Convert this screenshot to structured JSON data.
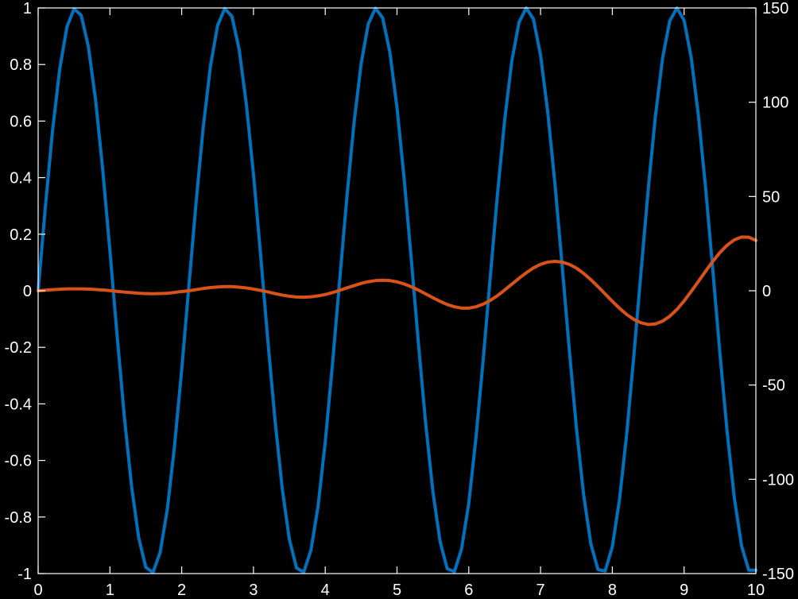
{
  "chart_data": {
    "type": "line",
    "title": "",
    "xlabel": "",
    "ylabel_left": "",
    "ylabel_right": "",
    "xlim": [
      0,
      10
    ],
    "ylim_left": [
      -1,
      1
    ],
    "ylim_right": [
      -150,
      150
    ],
    "grid": false,
    "background": "#000000",
    "axis_color": "#ffffff",
    "x_ticks": [
      "0",
      "1",
      "2",
      "3",
      "4",
      "5",
      "6",
      "7",
      "8",
      "9",
      "10"
    ],
    "y_left_ticks": [
      "-1",
      "-0.8",
      "-0.6",
      "-0.4",
      "-0.2",
      "0",
      "0.2",
      "0.4",
      "0.6",
      "0.8",
      "1"
    ],
    "y_right_ticks": [
      "-150",
      "-100",
      "-50",
      "0",
      "50",
      "100",
      "150"
    ],
    "series": [
      {
        "axis": "left",
        "color": "#0072BD",
        "x": [
          0,
          0.1,
          0.2,
          0.3,
          0.4,
          0.5,
          0.6,
          0.7,
          0.8,
          0.9,
          1,
          1.1,
          1.2,
          1.3,
          1.4,
          1.5,
          1.6,
          1.7,
          1.8,
          1.9,
          2,
          2.1,
          2.2,
          2.3,
          2.4,
          2.5,
          2.6,
          2.7,
          2.8,
          2.9,
          3,
          3.1,
          3.2,
          3.3,
          3.4,
          3.5,
          3.6,
          3.7,
          3.8,
          3.9,
          4,
          4.1,
          4.2,
          4.3,
          4.4,
          4.5,
          4.6,
          4.7,
          4.8,
          4.9,
          5,
          5.1,
          5.2,
          5.3,
          5.4,
          5.5,
          5.6,
          5.7,
          5.8,
          5.9,
          6,
          6.1,
          6.2,
          6.3,
          6.4,
          6.5,
          6.6,
          6.7,
          6.8,
          6.9,
          7,
          7.1,
          7.2,
          7.3,
          7.4,
          7.5,
          7.6,
          7.7,
          7.8,
          7.9,
          8,
          8.1,
          8.2,
          8.3,
          8.4,
          8.5,
          8.6,
          8.7,
          8.8,
          8.9,
          9,
          9.1,
          9.2,
          9.3,
          9.4,
          9.5,
          9.6,
          9.7,
          9.8,
          9.9,
          10
        ],
        "y": [
          0,
          0.295,
          0.565,
          0.783,
          0.932,
          0.997,
          0.974,
          0.863,
          0.675,
          0.427,
          0.141,
          -0.158,
          -0.443,
          -0.688,
          -0.872,
          -0.978,
          -0.996,
          -0.925,
          -0.772,
          -0.549,
          -0.279,
          0.017,
          0.311,
          0.578,
          0.793,
          0.938,
          0.998,
          0.97,
          0.854,
          0.661,
          0.412,
          0.125,
          -0.175,
          -0.457,
          -0.698,
          -0.879,
          -0.98,
          -0.995,
          -0.918,
          -0.762,
          -0.535,
          -0.262,
          0.034,
          0.327,
          0.591,
          0.803,
          0.944,
          0.999,
          0.965,
          0.844,
          0.647,
          0.395,
          0.108,
          -0.191,
          -0.471,
          -0.71,
          -0.887,
          -0.983,
          -0.993,
          -0.912,
          -0.751,
          -0.52,
          -0.246,
          0.05,
          0.342,
          0.604,
          0.813,
          0.949,
          1.0,
          0.961,
          0.833,
          0.632,
          0.379,
          0.091,
          -0.208,
          -0.486,
          -0.721,
          -0.894,
          -0.986,
          -0.991,
          -0.905,
          -0.738,
          -0.507,
          -0.229,
          0.067,
          0.358,
          0.617,
          0.822,
          0.954,
          1.0,
          0.956,
          0.823,
          0.618,
          0.363,
          0.074,
          -0.224,
          -0.5,
          -0.733,
          -0.901,
          -0.988,
          -0.988
        ]
      },
      {
        "axis": "right",
        "color": "#D95319",
        "x": [
          0,
          0.1,
          0.2,
          0.3,
          0.4,
          0.5,
          0.6,
          0.7,
          0.8,
          0.9,
          1,
          1.1,
          1.2,
          1.3,
          1.4,
          1.5,
          1.6,
          1.7,
          1.8,
          1.9,
          2,
          2.1,
          2.2,
          2.3,
          2.4,
          2.5,
          2.6,
          2.7,
          2.8,
          2.9,
          3,
          3.1,
          3.2,
          3.3,
          3.4,
          3.5,
          3.6,
          3.7,
          3.8,
          3.9,
          4,
          4.1,
          4.2,
          4.3,
          4.4,
          4.5,
          4.6,
          4.7,
          4.8,
          4.9,
          5,
          5.1,
          5.2,
          5.3,
          5.4,
          5.5,
          5.6,
          5.7,
          5.8,
          5.9,
          6,
          6.1,
          6.2,
          6.3,
          6.4,
          6.5,
          6.6,
          6.7,
          6.8,
          6.9,
          7,
          7.1,
          7.2,
          7.3,
          7.4,
          7.5,
          7.6,
          7.7,
          7.8,
          7.9,
          8,
          8.1,
          8.2,
          8.3,
          8.4,
          8.5,
          8.6,
          8.7,
          8.8,
          8.9,
          9,
          9.1,
          9.2,
          9.3,
          9.4,
          9.5,
          9.6,
          9.7,
          9.8,
          9.9,
          10
        ],
        "y": [
          0,
          0.3,
          0.6,
          0.8,
          1.0,
          1.0,
          1.0,
          0.9,
          0.7,
          0.4,
          0.1,
          -0.3,
          -0.7,
          -1.0,
          -1.3,
          -1.5,
          -1.6,
          -1.5,
          -1.3,
          -0.9,
          -0.4,
          0.0,
          0.6,
          1.2,
          1.7,
          2.0,
          2.2,
          2.2,
          1.9,
          1.5,
          0.9,
          0.2,
          -0.6,
          -1.5,
          -2.3,
          -2.9,
          -3.3,
          -3.4,
          -3.2,
          -2.7,
          -2.0,
          -1.0,
          0.2,
          1.5,
          2.7,
          3.9,
          4.8,
          5.4,
          5.6,
          5.4,
          4.7,
          3.6,
          2.1,
          0.3,
          -1.7,
          -3.7,
          -5.6,
          -7.3,
          -8.5,
          -9.2,
          -9.2,
          -8.5,
          -7.1,
          -5.1,
          -2.6,
          0.4,
          3.5,
          6.6,
          9.5,
          12.1,
          14.0,
          15.2,
          15.6,
          15.2,
          14.0,
          12.0,
          9.2,
          5.9,
          2.2,
          -1.7,
          -5.6,
          -9.3,
          -12.6,
          -15.2,
          -17.0,
          -17.9,
          -17.6,
          -16.1,
          -13.5,
          -9.9,
          -5.4,
          -0.3,
          5.0,
          10.4,
          15.6,
          20.3,
          24.2,
          27.0,
          28.5,
          28.4,
          26.7
        ]
      }
    ]
  }
}
